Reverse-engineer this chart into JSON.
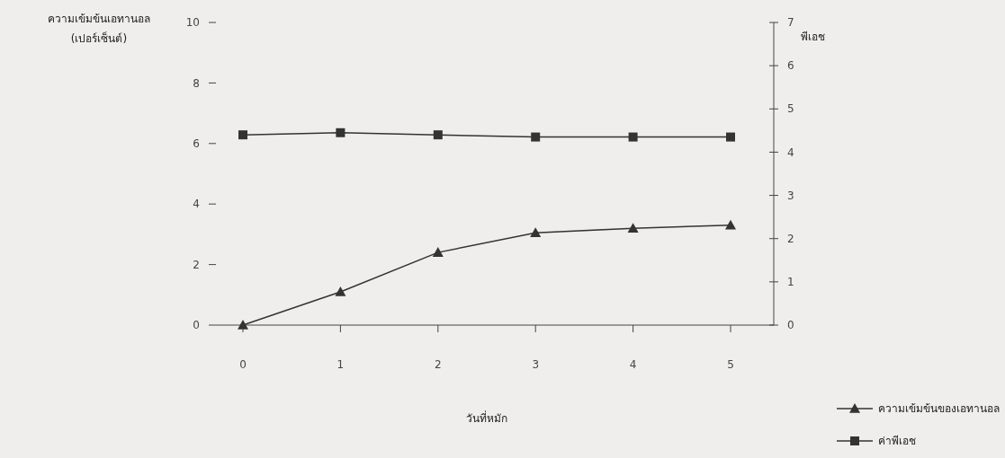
{
  "chart_data": {
    "type": "line",
    "xlabel": "วันที่หมัก",
    "ylabel": "ความเข้มข้นเอทานอล\n(เปอร์เซ็นต์)",
    "y2label": "พีเอช",
    "x": [
      0,
      1,
      2,
      3,
      4,
      5
    ],
    "xlim": [
      0,
      5
    ],
    "xticks": [
      0,
      1,
      2,
      3,
      4,
      5
    ],
    "ylim": [
      0,
      10
    ],
    "yticks": [
      0,
      2,
      4,
      6,
      8,
      10
    ],
    "y2lim": [
      0,
      7
    ],
    "y2ticks": [
      0,
      1,
      2,
      3,
      4,
      5,
      6,
      7
    ],
    "grid": false,
    "legend": "bottom right",
    "series": [
      {
        "name": "ความเข้มข้นของเอทานอล",
        "color": "#333333",
        "marker": "triangle",
        "values": [
          0,
          1.1,
          2.4,
          3.05,
          3.2,
          3.3
        ]
      },
      {
        "name": "ค่าพีเอช",
        "color": "#333333",
        "marker": "square",
        "axis": "y2",
        "values": [
          4.4,
          4.45,
          4.4,
          4.35,
          4.35,
          4.35
        ]
      }
    ]
  }
}
